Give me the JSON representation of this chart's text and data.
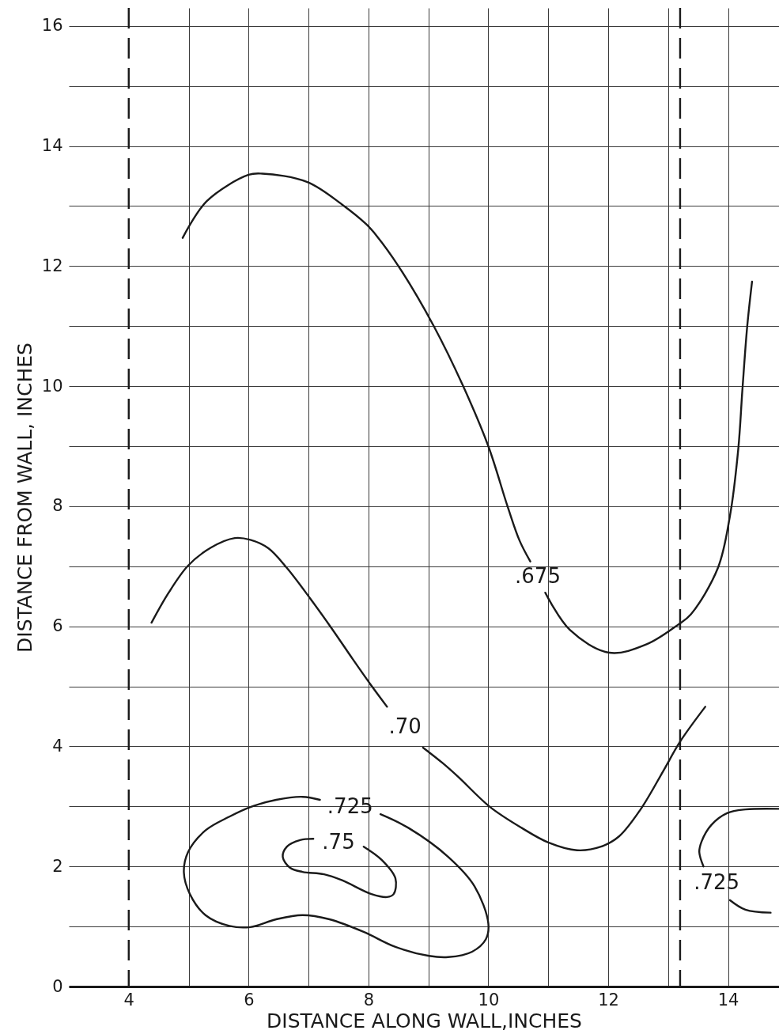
{
  "chart_data": {
    "type": "line",
    "xlabel": "DISTANCE ALONG WALL,INCHES",
    "ylabel": "DISTANCE FROM WALL, INCHES",
    "xlim": [
      3,
      14.85
    ],
    "ylim": [
      0,
      16.3
    ],
    "xticks": [
      4,
      {
        "value": 5,
        "label": null
      },
      6,
      {
        "value": 7,
        "label": null
      },
      8,
      {
        "value": 9,
        "label": null
      },
      10,
      {
        "value": 11,
        "label": null
      },
      12,
      {
        "value": 13,
        "label": null
      },
      14
    ],
    "yticks": [
      0,
      {
        "value": 1,
        "label": null
      },
      2,
      {
        "value": 3,
        "label": null
      },
      4,
      {
        "value": 5,
        "label": null
      },
      6,
      {
        "value": 7,
        "label": null
      },
      8,
      {
        "value": 9,
        "label": null
      },
      10,
      {
        "value": 11,
        "label": null
      },
      12,
      {
        "value": 13,
        "label": null
      },
      14,
      {
        "value": 15,
        "label": null
      },
      16
    ],
    "grid": true,
    "line_style": "solid",
    "ref_lines": [
      {
        "axis": "x",
        "value": 4,
        "color": "#1a1a1a",
        "line_style": "dashed"
      },
      {
        "axis": "x",
        "value": 13.2,
        "color": "#1a1a1a",
        "line_style": "dashed"
      }
    ],
    "series": [
      {
        "name": ".675",
        "color": "#1a1a1a",
        "x": [
          4.9,
          5.3,
          6.0,
          6.23,
          6.98,
          7.58,
          7.96,
          8.14,
          8.5,
          9.09,
          9.58,
          10.0,
          10.32,
          10.52,
          10.7,
          null,
          10.95,
          11.36,
          12.02,
          12.64,
          13.17,
          13.38,
          13.83,
          14.03,
          14.17,
          14.24,
          14.32,
          14.4
        ],
        "values": [
          12.47,
          13.08,
          13.52,
          13.54,
          13.4,
          13.01,
          12.7,
          12.5,
          12.0,
          11.0,
          10.0,
          9.0,
          8.0,
          7.43,
          7.08,
          null,
          6.56,
          5.94,
          5.56,
          5.7,
          6.03,
          6.2,
          6.97,
          7.83,
          8.95,
          9.95,
          11.0,
          11.74
        ]
      },
      {
        "name": ".70",
        "color": "#1a1a1a",
        "x": [
          4.38,
          4.66,
          4.99,
          5.37,
          5.77,
          6.03,
          6.33,
          6.64,
          7.03,
          7.39,
          7.74,
          8.05,
          8.31,
          null,
          8.91,
          9.24,
          9.5,
          10.03,
          10.56,
          11.0,
          11.48,
          11.88,
          12.18,
          12.54,
          12.93,
          13.2,
          13.62
        ],
        "values": [
          6.06,
          6.55,
          7.01,
          7.31,
          7.47,
          7.44,
          7.3,
          6.97,
          6.46,
          5.96,
          5.45,
          5.01,
          4.66,
          null,
          3.98,
          3.72,
          3.49,
          2.99,
          2.64,
          2.4,
          2.27,
          2.33,
          2.5,
          2.95,
          3.61,
          4.08,
          4.66
        ]
      },
      {
        "name": ".725",
        "color": "#1a1a1a",
        "x": [
          8.2,
          8.67,
          9.33,
          9.77,
          10.0,
          9.96,
          9.73,
          9.33,
          9.01,
          8.45,
          7.92,
          7.35,
          6.9,
          6.46,
          6.03,
          5.68,
          5.28,
          5.02,
          4.92,
          4.99,
          5.28,
          5.68,
          6.03,
          6.46,
          6.9,
          7.19
        ],
        "values": [
          2.87,
          2.64,
          2.16,
          1.67,
          1.05,
          0.79,
          0.58,
          0.49,
          0.51,
          0.66,
          0.91,
          1.12,
          1.19,
          1.12,
          0.99,
          1.01,
          1.19,
          1.54,
          1.9,
          2.24,
          2.6,
          2.83,
          2.99,
          3.11,
          3.16,
          3.11
        ]
      },
      {
        "name": ".75",
        "color": "#1a1a1a",
        "x": [
          7.92,
          8.22,
          8.45,
          8.42,
          8.31,
          8.05,
          7.56,
          7.26,
          6.9,
          6.69,
          6.57,
          6.64,
          6.86,
          7.08
        ],
        "values": [
          2.33,
          2.11,
          1.8,
          1.54,
          1.49,
          1.54,
          1.77,
          1.87,
          1.91,
          1.98,
          2.16,
          2.33,
          2.44,
          2.46
        ]
      },
      {
        "name": ".725",
        "color": "#1a1a1a",
        "x": [
          14.84,
          14.29,
          13.99,
          13.72,
          13.56,
          13.52,
          13.59,
          null,
          14.03,
          14.29,
          14.71
        ],
        "values": [
          2.96,
          2.95,
          2.89,
          2.69,
          2.42,
          2.24,
          2.0,
          null,
          1.44,
          1.28,
          1.23
        ]
      }
    ]
  }
}
